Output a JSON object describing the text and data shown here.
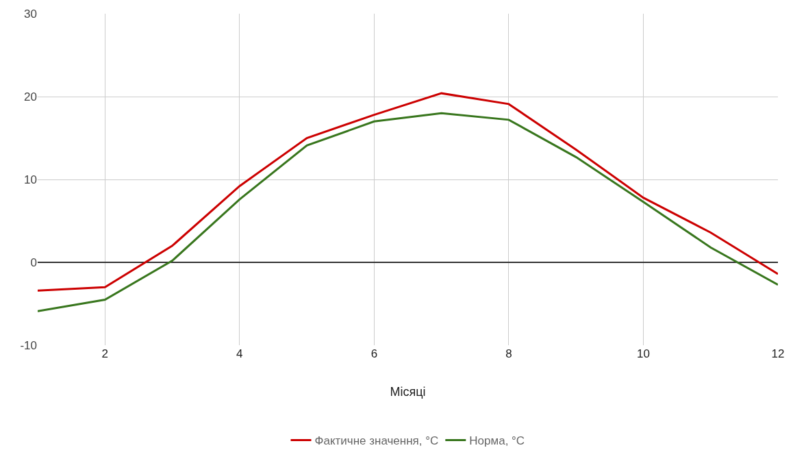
{
  "chart_data": {
    "type": "line",
    "xlabel": "Місяці",
    "x": [
      1,
      2,
      3,
      4,
      5,
      6,
      7,
      8,
      9,
      10,
      11,
      12
    ],
    "series": [
      {
        "name": "Фактичне значення, °C",
        "color": "#cc0000",
        "values": [
          -3.4,
          -3.0,
          2.0,
          9.2,
          15.0,
          17.8,
          20.4,
          19.1,
          13.6,
          7.8,
          3.6,
          -1.4
        ]
      },
      {
        "name": "Норма, °C",
        "color": "#38761d",
        "values": [
          -5.9,
          -4.5,
          0.2,
          7.6,
          14.1,
          17.0,
          18.0,
          17.2,
          12.7,
          7.3,
          1.8,
          -2.7
        ]
      }
    ],
    "xlim": [
      1,
      12
    ],
    "xticks": [
      2,
      4,
      6,
      8,
      10,
      12
    ],
    "ylim": [
      -10,
      30
    ],
    "yticks": [
      -10,
      0,
      10,
      20,
      30
    ],
    "grid": true,
    "legend": "bottom",
    "marker": "none",
    "line_style": "solid"
  }
}
